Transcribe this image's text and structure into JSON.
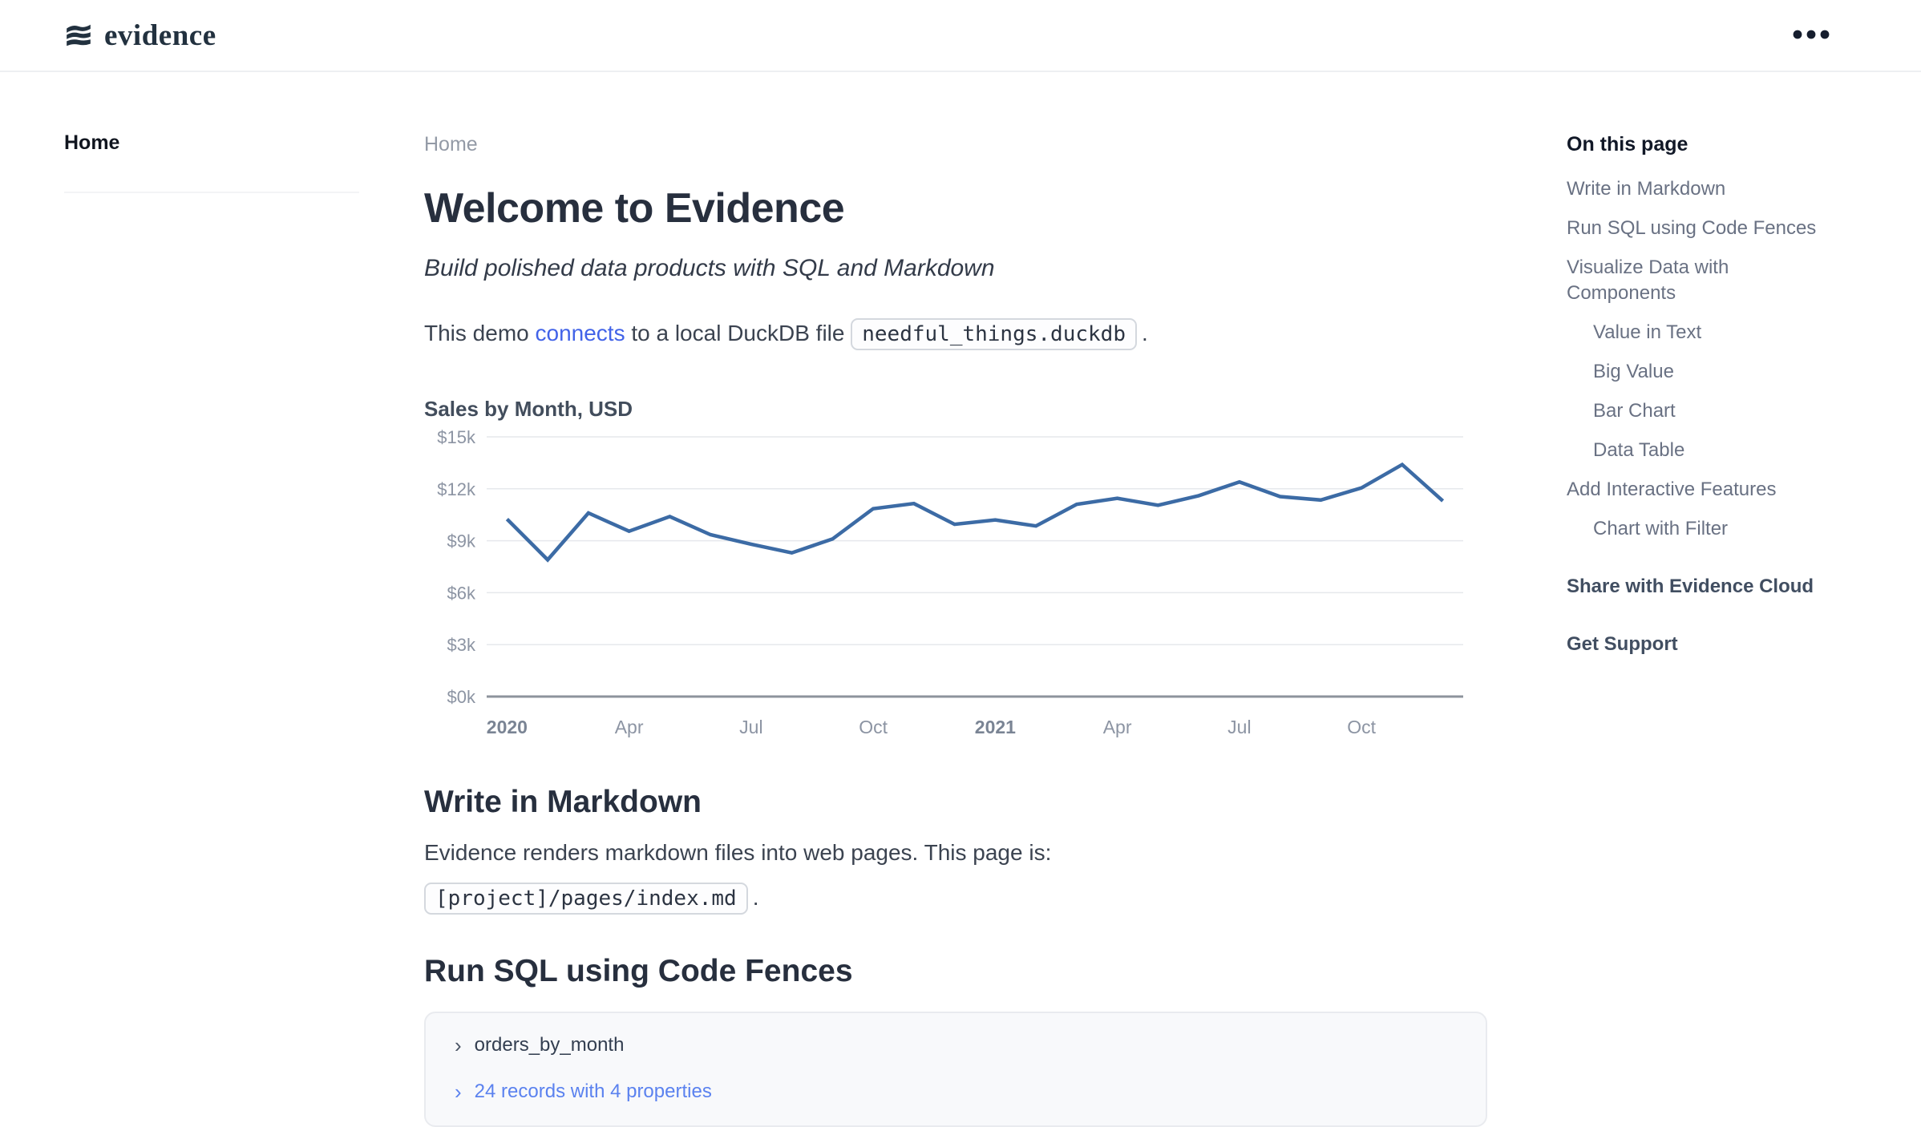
{
  "header": {
    "logo_text": "evidence"
  },
  "sidebar": {
    "items": [
      {
        "label": "Home",
        "active": true
      }
    ]
  },
  "main": {
    "breadcrumb": "Home",
    "title": "Welcome to Evidence",
    "subtitle": "Build polished data products with SQL and Markdown",
    "intro_pre": "This demo ",
    "intro_link": "connects",
    "intro_mid": " to a local DuckDB file ",
    "intro_code": "needful_things.duckdb",
    "intro_post": ".",
    "markdown_section": {
      "heading": "Write in Markdown",
      "body": "Evidence renders markdown files into web pages. This page is:",
      "path_code": "[project]/pages/index.md",
      "period": "."
    },
    "sql_section": {
      "heading": "Run SQL using Code Fences",
      "query_name": "orders_by_month",
      "results_link": "24 records with 4 properties"
    }
  },
  "icons": {
    "chevron_right": "›"
  },
  "chart_data": {
    "type": "line",
    "title": "Sales by Month, USD",
    "x_months": [
      "Jan 2020",
      "Feb 2020",
      "Mar 2020",
      "Apr 2020",
      "May 2020",
      "Jun 2020",
      "Jul 2020",
      "Aug 2020",
      "Sep 2020",
      "Oct 2020",
      "Nov 2020",
      "Dec 2020",
      "Jan 2021",
      "Feb 2021",
      "Mar 2021",
      "Apr 2021",
      "May 2021",
      "Jun 2021",
      "Jul 2021",
      "Aug 2021",
      "Sep 2021",
      "Oct 2021",
      "Nov 2021",
      "Dec 2021"
    ],
    "values_usd": [
      10250,
      7900,
      10600,
      9550,
      10400,
      9350,
      8800,
      8300,
      9100,
      10850,
      11150,
      9950,
      10200,
      9850,
      11100,
      11450,
      11050,
      11600,
      12400,
      11550,
      11350,
      12050,
      13400,
      11300
    ],
    "ylim_usd": [
      0,
      15000
    ],
    "y_tick_step_usd": 3000,
    "y_tick_labels": [
      "$0k",
      "$3k",
      "$6k",
      "$9k",
      "$12k",
      "$15k"
    ],
    "x_ticks": [
      {
        "month_index": 0,
        "label": "2020",
        "bold": true
      },
      {
        "month_index": 3,
        "label": "Apr",
        "bold": false
      },
      {
        "month_index": 6,
        "label": "Jul",
        "bold": false
      },
      {
        "month_index": 9,
        "label": "Oct",
        "bold": false
      },
      {
        "month_index": 12,
        "label": "2021",
        "bold": true
      },
      {
        "month_index": 15,
        "label": "Apr",
        "bold": false
      },
      {
        "month_index": 18,
        "label": "Jul",
        "bold": false
      },
      {
        "month_index": 21,
        "label": "Oct",
        "bold": false
      }
    ],
    "line_color": "#3c6ba5",
    "grid": true,
    "legend": false
  },
  "toc": {
    "heading": "On this page",
    "items": [
      {
        "label": "Write in Markdown",
        "level": 1,
        "bold": false,
        "spaced": false
      },
      {
        "label": "Run SQL using Code Fences",
        "level": 1,
        "bold": false,
        "spaced": false
      },
      {
        "label": "Visualize Data with Components",
        "level": 1,
        "bold": false,
        "spaced": false
      },
      {
        "label": "Value in Text",
        "level": 2,
        "bold": false,
        "spaced": false
      },
      {
        "label": "Big Value",
        "level": 2,
        "bold": false,
        "spaced": false
      },
      {
        "label": "Bar Chart",
        "level": 2,
        "bold": false,
        "spaced": false
      },
      {
        "label": "Data Table",
        "level": 2,
        "bold": false,
        "spaced": false
      },
      {
        "label": "Add Interactive Features",
        "level": 1,
        "bold": false,
        "spaced": false
      },
      {
        "label": "Chart with Filter",
        "level": 2,
        "bold": false,
        "spaced": false
      },
      {
        "label": "Share with Evidence Cloud",
        "level": 1,
        "bold": true,
        "spaced": true
      },
      {
        "label": "Get Support",
        "level": 1,
        "bold": true,
        "spaced": true
      }
    ]
  },
  "colors": {
    "link_blue": "#4263e8",
    "records_link_blue": "#5b82ef",
    "chart_line": "#3c6ba5",
    "heading_dark": "#272f3e",
    "toc_gray": "#697183"
  }
}
